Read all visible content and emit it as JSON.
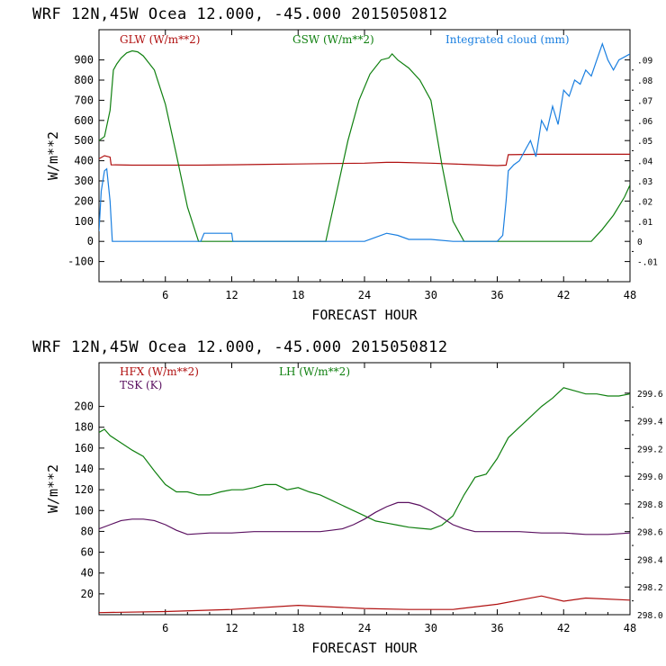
{
  "chart_data": [
    {
      "type": "line",
      "header": "WRF  12N,45W Ocea  12.000, -45.000  2015050812",
      "xlabel": "FORECAST HOUR",
      "ylabel": "W/m**2",
      "xlim": [
        0,
        48
      ],
      "ylim": [
        -200,
        1050
      ],
      "y2lim": [
        -0.02,
        0.105
      ],
      "x_ticks": [
        6,
        12,
        18,
        24,
        30,
        36,
        42,
        48
      ],
      "y_ticks": [
        -100,
        0,
        100,
        200,
        300,
        400,
        500,
        600,
        700,
        800,
        900
      ],
      "y2_ticks": [
        -0.01,
        0,
        0.01,
        0.02,
        0.03,
        0.04,
        0.05,
        0.06,
        0.07,
        0.08,
        0.09
      ],
      "y2_tick_labels": [
        "-.01",
        "0",
        ".01",
        ".02",
        ".03",
        ".04",
        ".05",
        ".06",
        ".07",
        ".08",
        ".09"
      ],
      "series": [
        {
          "name": "GLW (W/m**2)",
          "color": "#b01010",
          "axis": "left",
          "x": [
            0,
            0.5,
            1,
            1.1,
            3,
            6,
            9,
            12,
            15,
            18,
            21,
            24,
            26,
            27,
            30,
            33,
            36,
            36.8,
            37,
            40,
            44,
            48
          ],
          "y": [
            410,
            425,
            418,
            380,
            378,
            378,
            378,
            380,
            382,
            384,
            386,
            388,
            392,
            392,
            388,
            382,
            376,
            378,
            430,
            432,
            432,
            432
          ]
        },
        {
          "name": "GSW (W/m**2)",
          "color": "#108010",
          "axis": "left",
          "x": [
            0,
            0.5,
            1,
            1.3,
            1.6,
            2,
            2.5,
            3,
            3.5,
            4,
            5,
            6,
            7,
            8,
            9,
            20.5,
            21.5,
            22.5,
            23.5,
            24.5,
            25.5,
            26.2,
            26.5,
            27,
            28,
            29,
            30,
            31,
            32,
            33,
            44.5,
            45.5,
            46.5,
            47.5,
            48
          ],
          "y": [
            500,
            520,
            650,
            850,
            880,
            910,
            935,
            945,
            940,
            920,
            850,
            680,
            430,
            170,
            0,
            0,
            250,
            500,
            700,
            830,
            900,
            910,
            930,
            900,
            860,
            800,
            700,
            380,
            100,
            0,
            0,
            60,
            130,
            220,
            280
          ]
        },
        {
          "name": "Integrated cloud (mm)",
          "color": "#1a7fe0",
          "axis": "right",
          "x": [
            0,
            0.2,
            0.5,
            0.7,
            1,
            1.2,
            2,
            4,
            6,
            8,
            9.2,
            9.5,
            12,
            12.1,
            14,
            16,
            18,
            20,
            24,
            25,
            26,
            27,
            28,
            30,
            32,
            34,
            36,
            36.5,
            36.8,
            37,
            37.5,
            38,
            38.5,
            39,
            39.5,
            40,
            40.5,
            41,
            41.5,
            42,
            42.5,
            43,
            43.5,
            44,
            44.5,
            45,
            45.5,
            46,
            46.5,
            47,
            48
          ],
          "y": [
            0.005,
            0.025,
            0.035,
            0.036,
            0.02,
            0,
            0,
            0,
            0,
            0,
            0,
            0.004,
            0.004,
            0,
            0,
            0,
            0,
            0,
            0,
            0.002,
            0.004,
            0.003,
            0.001,
            0.001,
            0,
            0,
            0,
            0.003,
            0.02,
            0.035,
            0.038,
            0.04,
            0.045,
            0.05,
            0.042,
            0.06,
            0.055,
            0.067,
            0.058,
            0.075,
            0.072,
            0.08,
            0.078,
            0.085,
            0.082,
            0.09,
            0.098,
            0.09,
            0.085,
            0.09,
            0.093
          ]
        }
      ]
    },
    {
      "type": "line",
      "header": "WRF  12N,45W Ocea  12.000, -45.000  2015050812",
      "xlabel": "FORECAST HOUR",
      "ylabel": "W/m**2",
      "xlim": [
        0,
        48
      ],
      "ylim": [
        0,
        242
      ],
      "y2lim": [
        298.0,
        299.82
      ],
      "x_ticks": [
        6,
        12,
        18,
        24,
        30,
        36,
        42,
        48
      ],
      "y_ticks": [
        20,
        40,
        60,
        80,
        100,
        120,
        140,
        160,
        180,
        200
      ],
      "y2_ticks": [
        298.0,
        298.2,
        298.4,
        298.6,
        298.8,
        299.0,
        299.2,
        299.4,
        299.6
      ],
      "y2_tick_labels": [
        "298.0",
        "298.2",
        "298.4",
        "298.6",
        "298.8",
        "299.0",
        "299.2",
        "299.4",
        "299.6"
      ],
      "series": [
        {
          "name": "HFX (W/m**2)",
          "color": "#b01010",
          "axis": "left",
          "x": [
            0,
            6,
            12,
            18,
            24,
            28,
            32,
            36,
            40,
            42,
            44,
            48
          ],
          "y": [
            2,
            3,
            5,
            9,
            6,
            5,
            5,
            10,
            18,
            13,
            16,
            14
          ]
        },
        {
          "name": "LH (W/m**2)",
          "color": "#108010",
          "axis": "left",
          "x": [
            0,
            0.5,
            1,
            2,
            3,
            4,
            5,
            6,
            7,
            8,
            9,
            10,
            11,
            12,
            13,
            14,
            15,
            16,
            17,
            18,
            19,
            20,
            21,
            22,
            23,
            24,
            25,
            26,
            27,
            28,
            29,
            30,
            31,
            32,
            33,
            34,
            35,
            36,
            37,
            38,
            39,
            40,
            41,
            42,
            43,
            44,
            45,
            46,
            47,
            48
          ],
          "y": [
            175,
            178,
            172,
            165,
            158,
            152,
            138,
            125,
            118,
            118,
            115,
            115,
            118,
            120,
            120,
            122,
            125,
            125,
            120,
            122,
            118,
            115,
            110,
            105,
            100,
            95,
            90,
            88,
            86,
            84,
            83,
            82,
            86,
            95,
            115,
            132,
            135,
            150,
            170,
            180,
            190,
            200,
            208,
            218,
            215,
            212,
            212,
            210,
            210,
            212
          ]
        },
        {
          "name": "TSK (K)",
          "color": "#5a1060",
          "axis": "right",
          "x": [
            0,
            1,
            2,
            3,
            4,
            5,
            6,
            7,
            8,
            10,
            12,
            14,
            16,
            18,
            20,
            21,
            22,
            23,
            24,
            25,
            26,
            27,
            28,
            29,
            30,
            31,
            32,
            33,
            34,
            36,
            38,
            40,
            42,
            44,
            46,
            48
          ],
          "y": [
            298.62,
            298.65,
            298.68,
            298.69,
            298.69,
            298.68,
            298.65,
            298.61,
            298.58,
            298.59,
            298.59,
            298.6,
            298.6,
            298.6,
            298.6,
            298.61,
            298.62,
            298.65,
            298.69,
            298.74,
            298.78,
            298.81,
            298.81,
            298.79,
            298.75,
            298.7,
            298.65,
            298.62,
            298.6,
            298.6,
            298.6,
            298.59,
            298.59,
            298.58,
            298.58,
            298.59
          ]
        }
      ]
    }
  ]
}
